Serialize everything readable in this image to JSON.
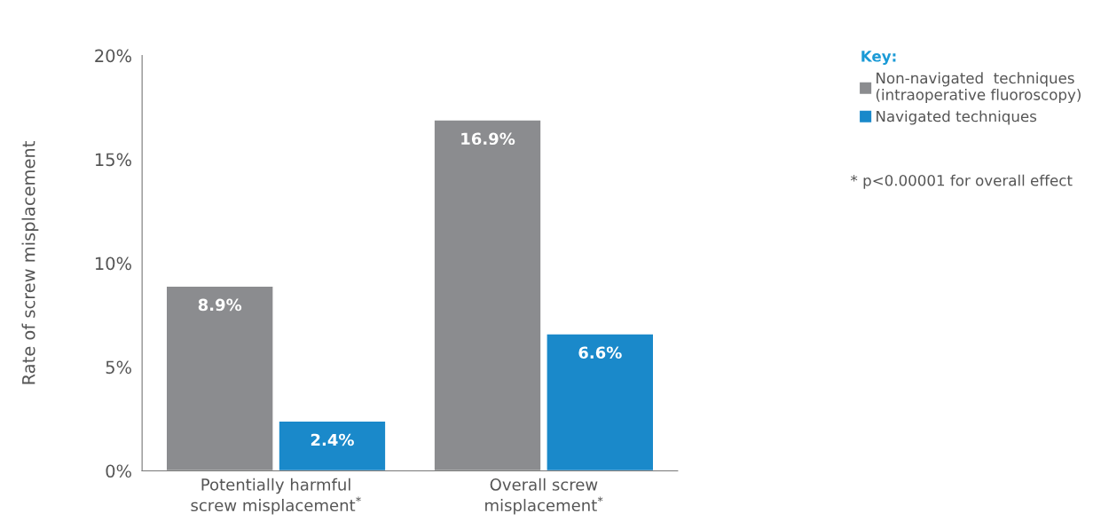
{
  "chart_data": {
    "type": "bar",
    "ylabel": "Rate of screw misplacement",
    "legend_title": "Key:",
    "categories": [
      "Potentially harmful\nscrew misplacement$^{*}$",
      "Overall screw\nmisplacement$^{*}$"
    ],
    "series": [
      {
        "name": "Non-navigated  techniques\n(intraoperative fluoroscopy)",
        "color": "#8b8c8f",
        "values": [
          8.9,
          16.9
        ],
        "value_labels": [
          "8.9%",
          "16.9%"
        ]
      },
      {
        "name": "Navigated techniques",
        "color": "#1a89ca",
        "values": [
          2.4,
          6.6
        ],
        "value_labels": [
          "2.4%",
          "6.6%"
        ]
      }
    ],
    "ylim": [
      0,
      20
    ],
    "yticks": [
      {
        "value": 0,
        "label": "0%"
      },
      {
        "value": 5,
        "label": "5%"
      },
      {
        "value": 10,
        "label": "10%"
      },
      {
        "value": 15,
        "label": "15%"
      },
      {
        "value": 20,
        "label": "20%"
      }
    ],
    "grid": false,
    "legend": "top right",
    "annotations": [
      "* p<0.00001 for overall effect"
    ]
  }
}
